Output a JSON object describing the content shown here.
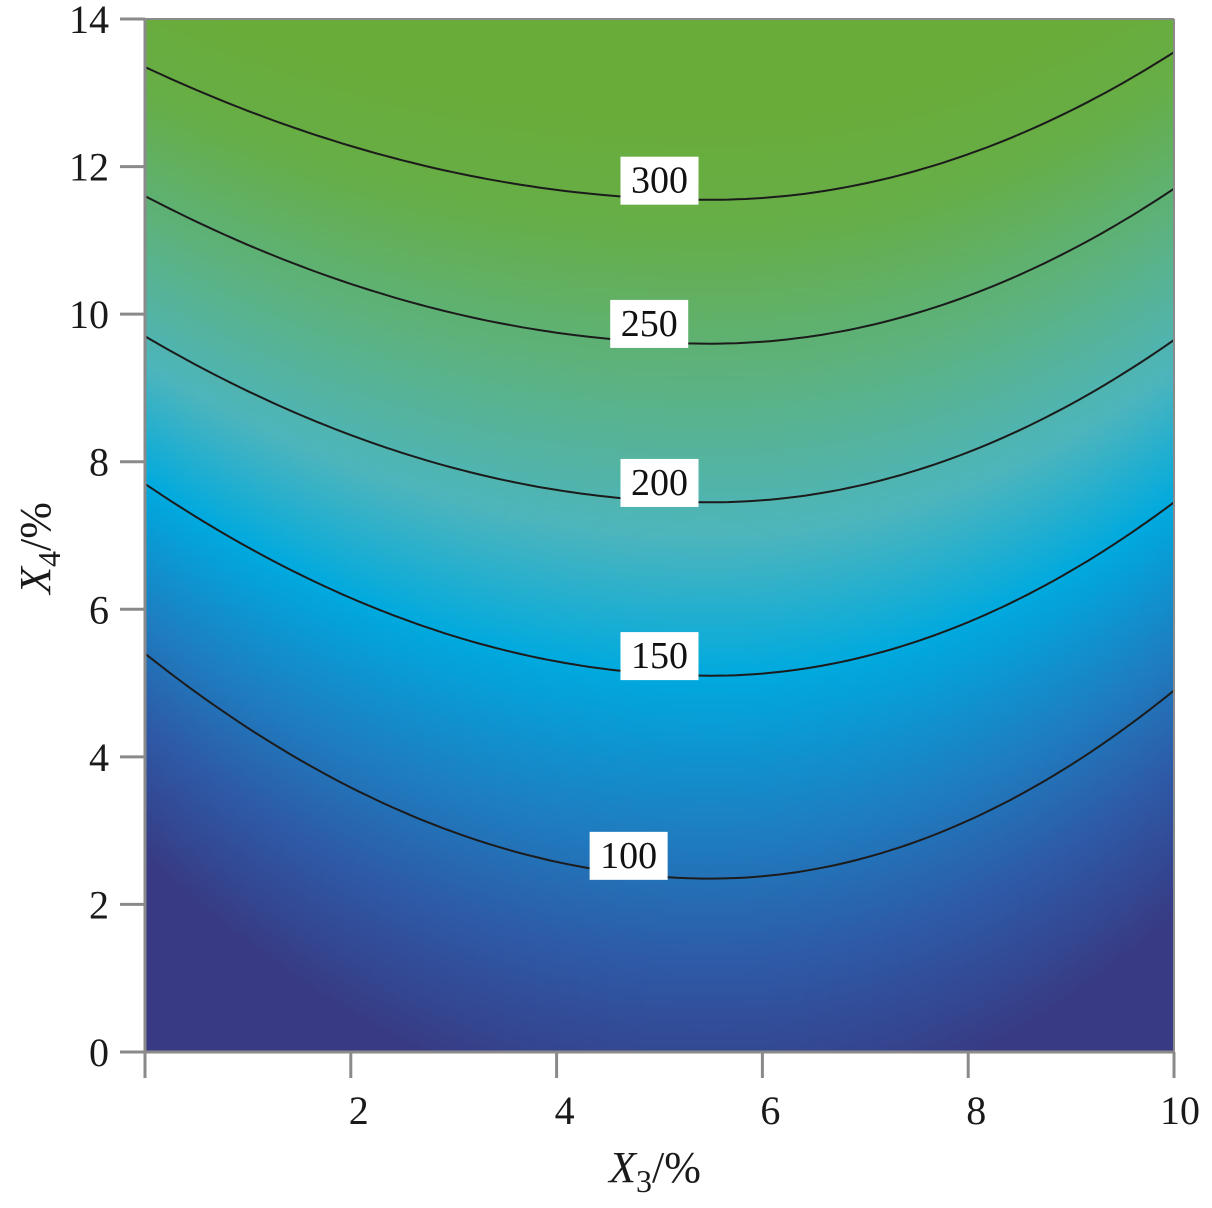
{
  "chart_data": {
    "type": "contour",
    "xlabel": {
      "var": "X",
      "sub": "3",
      "unit": "/%"
    },
    "ylabel": {
      "var": "X",
      "sub": "4",
      "unit": "/%"
    },
    "xlim": [
      0,
      10
    ],
    "ylim": [
      0,
      14
    ],
    "x_ticks": [
      {
        "value": 2,
        "label": "2"
      },
      {
        "value": 4,
        "label": "4"
      },
      {
        "value": 6,
        "label": "6"
      },
      {
        "value": 8,
        "label": "8"
      },
      {
        "value": 10,
        "label": "10"
      }
    ],
    "y_ticks": [
      {
        "value": 0,
        "label": "0"
      },
      {
        "value": 2,
        "label": "2"
      },
      {
        "value": 4,
        "label": "4"
      },
      {
        "value": 6,
        "label": "6"
      },
      {
        "value": 8,
        "label": "8"
      },
      {
        "value": 10,
        "label": "10"
      },
      {
        "value": 12,
        "label": "12"
      },
      {
        "value": 14,
        "label": "14"
      }
    ],
    "contours": [
      {
        "level": 100,
        "label": "100",
        "y_left": 5.4,
        "y_min": 2.35,
        "x_min": 5.5,
        "y_right": 4.9,
        "label_x": 4.7
      },
      {
        "level": 150,
        "label": "150",
        "y_left": 7.7,
        "y_min": 5.1,
        "x_min": 5.5,
        "y_right": 7.45,
        "label_x": 5.0
      },
      {
        "level": 200,
        "label": "200",
        "y_left": 9.7,
        "y_min": 7.45,
        "x_min": 5.5,
        "y_right": 9.65,
        "label_x": 5.0
      },
      {
        "level": 250,
        "label": "250",
        "y_left": 11.6,
        "y_min": 9.6,
        "x_min": 5.5,
        "y_right": 11.7,
        "label_x": 4.9
      },
      {
        "level": 300,
        "label": "300",
        "y_left": 13.35,
        "y_min": 11.55,
        "x_min": 5.5,
        "y_right": 13.55,
        "label_x": 5.0
      }
    ],
    "colorscale": [
      {
        "level": 40,
        "color": "#383b84"
      },
      {
        "level": 80,
        "color": "#2e5ba8"
      },
      {
        "level": 110,
        "color": "#1f7dc0"
      },
      {
        "level": 150,
        "color": "#00aadf"
      },
      {
        "level": 190,
        "color": "#4db5bd"
      },
      {
        "level": 240,
        "color": "#5db27e"
      },
      {
        "level": 290,
        "color": "#66ae47"
      },
      {
        "level": 330,
        "color": "#6aac3a"
      }
    ],
    "line_color": "#1b1b1b",
    "grid": false,
    "legend": "none"
  }
}
